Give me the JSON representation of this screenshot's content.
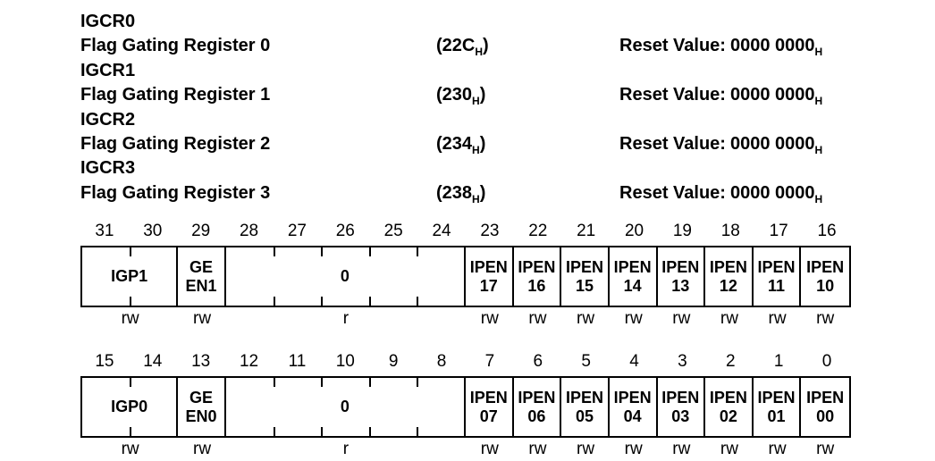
{
  "labels": {
    "reset_prefix": "Reset Value:",
    "hex_sub": "H",
    "open_paren": "(",
    "close_paren": ")"
  },
  "registers": [
    {
      "name": "IGCR0",
      "description": "Flag Gating Register 0",
      "address": "22C",
      "reset_value": "0000 0000"
    },
    {
      "name": "IGCR1",
      "description": "Flag Gating Register 1",
      "address": "230",
      "reset_value": "0000 0000"
    },
    {
      "name": "IGCR2",
      "description": "Flag Gating Register 2",
      "address": "234",
      "reset_value": "0000 0000"
    },
    {
      "name": "IGCR3",
      "description": "Flag Gating Register 3",
      "address": "238",
      "reset_value": "0000 0000"
    }
  ],
  "diagrams": [
    {
      "name": "high-word",
      "bit_numbers": [
        "31",
        "30",
        "29",
        "28",
        "27",
        "26",
        "25",
        "24",
        "23",
        "22",
        "21",
        "20",
        "19",
        "18",
        "17",
        "16"
      ],
      "fields": [
        {
          "name": "IGP1",
          "label_lines": [
            "IGP1"
          ],
          "span": 2,
          "access": "rw"
        },
        {
          "name": "GEEN1",
          "label_lines": [
            "GE",
            "EN1"
          ],
          "span": 1,
          "access": "rw"
        },
        {
          "name": "reserved-high",
          "label_lines": [
            "0"
          ],
          "span": 5,
          "access": "r"
        },
        {
          "name": "IPEN17",
          "label_lines": [
            "IPEN",
            "17"
          ],
          "span": 1,
          "access": "rw"
        },
        {
          "name": "IPEN16",
          "label_lines": [
            "IPEN",
            "16"
          ],
          "span": 1,
          "access": "rw"
        },
        {
          "name": "IPEN15",
          "label_lines": [
            "IPEN",
            "15"
          ],
          "span": 1,
          "access": "rw"
        },
        {
          "name": "IPEN14",
          "label_lines": [
            "IPEN",
            "14"
          ],
          "span": 1,
          "access": "rw"
        },
        {
          "name": "IPEN13",
          "label_lines": [
            "IPEN",
            "13"
          ],
          "span": 1,
          "access": "rw"
        },
        {
          "name": "IPEN12",
          "label_lines": [
            "IPEN",
            "12"
          ],
          "span": 1,
          "access": "rw"
        },
        {
          "name": "IPEN11",
          "label_lines": [
            "IPEN",
            "11"
          ],
          "span": 1,
          "access": "rw"
        },
        {
          "name": "IPEN10",
          "label_lines": [
            "IPEN",
            "10"
          ],
          "span": 1,
          "access": "rw"
        }
      ]
    },
    {
      "name": "low-word",
      "bit_numbers": [
        "15",
        "14",
        "13",
        "12",
        "11",
        "10",
        "9",
        "8",
        "7",
        "6",
        "5",
        "4",
        "3",
        "2",
        "1",
        "0"
      ],
      "fields": [
        {
          "name": "IGP0",
          "label_lines": [
            "IGP0"
          ],
          "span": 2,
          "access": "rw"
        },
        {
          "name": "GEEN0",
          "label_lines": [
            "GE",
            "EN0"
          ],
          "span": 1,
          "access": "rw"
        },
        {
          "name": "reserved-low",
          "label_lines": [
            "0"
          ],
          "span": 5,
          "access": "r"
        },
        {
          "name": "IPEN07",
          "label_lines": [
            "IPEN",
            "07"
          ],
          "span": 1,
          "access": "rw"
        },
        {
          "name": "IPEN06",
          "label_lines": [
            "IPEN",
            "06"
          ],
          "span": 1,
          "access": "rw"
        },
        {
          "name": "IPEN05",
          "label_lines": [
            "IPEN",
            "05"
          ],
          "span": 1,
          "access": "rw"
        },
        {
          "name": "IPEN04",
          "label_lines": [
            "IPEN",
            "04"
          ],
          "span": 1,
          "access": "rw"
        },
        {
          "name": "IPEN03",
          "label_lines": [
            "IPEN",
            "03"
          ],
          "span": 1,
          "access": "rw"
        },
        {
          "name": "IPEN02",
          "label_lines": [
            "IPEN",
            "02"
          ],
          "span": 1,
          "access": "rw"
        },
        {
          "name": "IPEN01",
          "label_lines": [
            "IPEN",
            "01"
          ],
          "span": 1,
          "access": "rw"
        },
        {
          "name": "IPEN00",
          "label_lines": [
            "IPEN",
            "00"
          ],
          "span": 1,
          "access": "rw"
        }
      ]
    }
  ]
}
